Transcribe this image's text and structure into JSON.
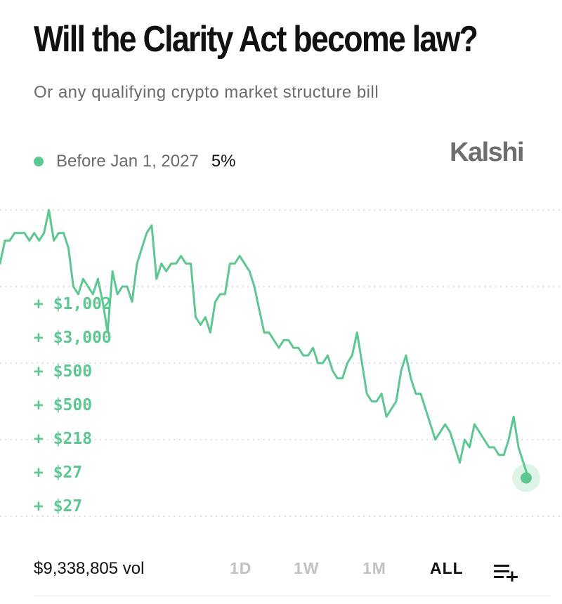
{
  "header": {
    "title": "Will the Clarity Act become law?",
    "subtitle": "Or any qualifying crypto market structure bill"
  },
  "brand": {
    "name": "Kalshi"
  },
  "legend": {
    "label": "Before Jan 1, 2027",
    "value": "5%",
    "color": "#5dc792"
  },
  "footer": {
    "volume": "$9,338,805 vol",
    "ranges": [
      "1D",
      "1W",
      "1M",
      "ALL"
    ],
    "active_range": "ALL",
    "list_icon": "playlist-add-icon"
  },
  "chart_data": {
    "type": "line",
    "series": [
      {
        "values": [
          33,
          36,
          36,
          37,
          37,
          37,
          36,
          37,
          36,
          37,
          40,
          36,
          37,
          37,
          35,
          30,
          29,
          31,
          30,
          29,
          31,
          28,
          24,
          32,
          29,
          30,
          30,
          28,
          33,
          35,
          37,
          38,
          31,
          33,
          32,
          33,
          33,
          34,
          33,
          33,
          26,
          25,
          26,
          24,
          28,
          29,
          29,
          33,
          33,
          34,
          33,
          32,
          30,
          27,
          24,
          24,
          23,
          22,
          23,
          23,
          22,
          22,
          21,
          21,
          22,
          20,
          20,
          21,
          19,
          18,
          18,
          20,
          21,
          24,
          20,
          16,
          15,
          15,
          16,
          13,
          14,
          15,
          19,
          21,
          18,
          16,
          16,
          14,
          12,
          10,
          11,
          12,
          11,
          9,
          7,
          10,
          9,
          12,
          11,
          10,
          9,
          9,
          8,
          8,
          10,
          13,
          9,
          7,
          5
        ],
        "color": "#5dc792"
      }
    ],
    "ylim": [
      0,
      40
    ],
    "gridlines": [
      0,
      10,
      20,
      30,
      40
    ],
    "grid": true,
    "last_value_marker": true,
    "annotations": [
      "+ $1,002",
      "+ $3,000",
      "+ $500",
      "+ $500",
      "+ $218",
      "+ $27",
      "+ $27"
    ],
    "annotation_color": "#5dc792"
  }
}
